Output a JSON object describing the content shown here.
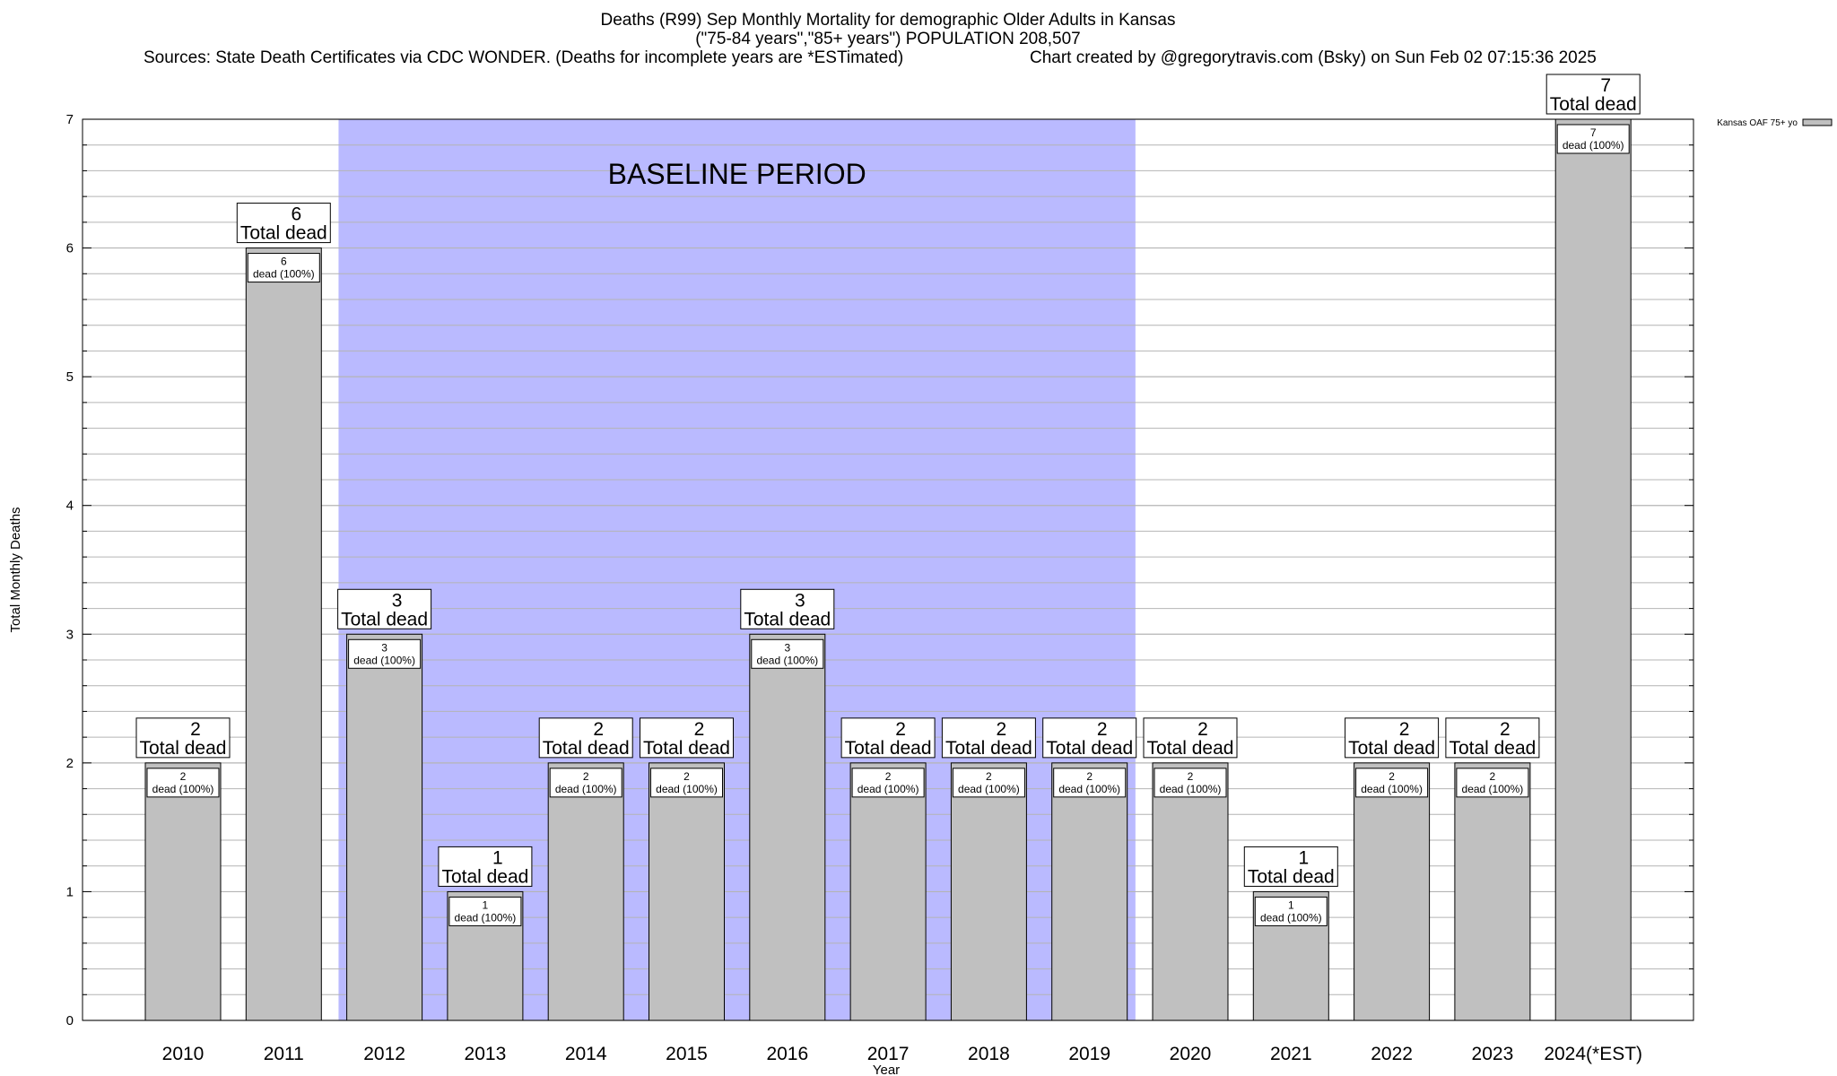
{
  "header": {
    "title_line1": "Deaths (R99) Sep Monthly Mortality for demographic Older Adults in Kansas",
    "title_line2": "(\"75-84 years\",\"85+ years\") POPULATION 208,507",
    "sources": "Sources: State Death Certificates via CDC WONDER. (Deaths for incomplete years are *ESTimated)",
    "created": "Chart created by @gregorytravis.com (Bsky) on Sun Feb 02 07:15:36 2025"
  },
  "colors": {
    "bar_fill": "#c0c0c0",
    "baseline_fill": "#babaff",
    "grid": "#b4b4b4"
  },
  "chart_data": {
    "type": "bar",
    "categories": [
      "2010",
      "2011",
      "2012",
      "2013",
      "2014",
      "2015",
      "2016",
      "2017",
      "2018",
      "2019",
      "2020",
      "2021",
      "2022",
      "2023",
      "2024(*EST)"
    ],
    "series": [
      {
        "name": "Kansas OAF 75+ yo",
        "values": [
          2,
          6,
          3,
          1,
          2,
          2,
          3,
          2,
          2,
          2,
          2,
          1,
          2,
          2,
          7
        ]
      }
    ],
    "xlabel": "Year",
    "ylabel": "Total Monthly Deaths",
    "ylim": [
      0,
      7
    ],
    "yticks": [
      0,
      1,
      2,
      3,
      4,
      5,
      6,
      7
    ],
    "grid": true,
    "legend_position": "top-right",
    "shaded_region": {
      "from": "2012",
      "to": "2019",
      "label": "BASELINE PERIOD"
    },
    "top_label_suffix": "Total dead",
    "inner_label_suffix": "dead (100%)"
  }
}
